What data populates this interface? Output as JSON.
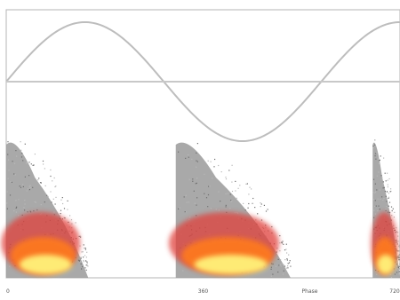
{
  "chart_data": {
    "type": "scatter",
    "xlim": [
      0,
      720
    ],
    "x_tick_labels": [
      "0",
      "360",
      "Phase",
      "720"
    ],
    "reference_line": {
      "kind": "sine",
      "cycles": 1.25,
      "baseline_visible": true
    },
    "density_clusters": [
      {
        "x_start": 0,
        "x_end": 150
      },
      {
        "x_start": 310,
        "x_end": 520
      },
      {
        "x_start": 670,
        "x_end": 720
      }
    ],
    "colors": {
      "sine_line": "#bdbdbd",
      "baseline": "#c8c8c8",
      "frame": "#b5b5b5",
      "density_low": "#9a9a9a",
      "density_mid": "#e0403a",
      "density_high": "#ff7a1a",
      "density_peak": "#fff27a"
    }
  }
}
